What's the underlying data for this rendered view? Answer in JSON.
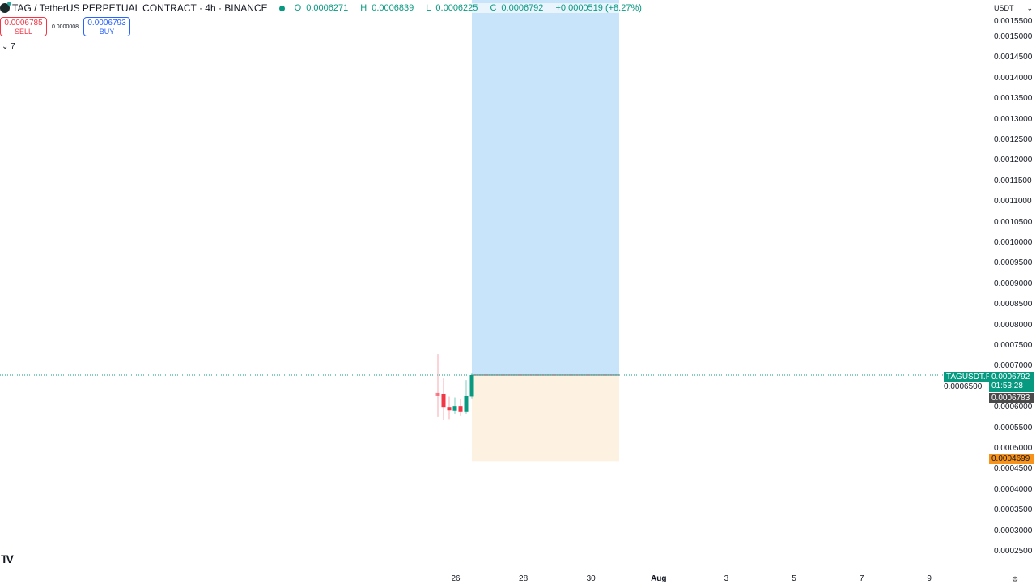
{
  "header": {
    "symbol": "TAG",
    "pair": "TAG / TetherUS PERPETUAL CONTRACT · 4h · BINANCE",
    "ohlc": {
      "o_label": "O",
      "o": "0.0006271",
      "h_label": "H",
      "h": "0.0006839",
      "l_label": "L",
      "l": "0.0006225",
      "c_label": "C",
      "c": "0.0006792",
      "change": "+0.0000519 (+8.27%)"
    }
  },
  "trade": {
    "sell_price": "0.0006785",
    "sell_label": "SELL",
    "spread": "0.0000008",
    "buy_price": "0.0006793",
    "buy_label": "BUY"
  },
  "indicators_toggle": "7",
  "currency": "USDT",
  "price_axis": [
    "0.0015500",
    "0.0015000",
    "0.0014500",
    "0.0014000",
    "0.0013500",
    "0.0013000",
    "0.0012500",
    "0.0012000",
    "0.0011500",
    "0.0011000",
    "0.0010500",
    "0.0010000",
    "0.0009500",
    "0.0009000",
    "0.0008500",
    "0.0008000",
    "0.0007500",
    "0.0007000",
    "0.0006500",
    "0.0006000",
    "0.0005500",
    "0.0005000",
    "0.0004500",
    "0.0004000",
    "0.0003500",
    "0.0003000",
    "0.0002500"
  ],
  "time_axis": [
    "26",
    "28",
    "30",
    "Aug",
    "3",
    "5",
    "7",
    "9"
  ],
  "tags": {
    "symbol": "TAGUSDT.P",
    "last_price": "0.0006792",
    "countdown": "01:53:28",
    "bid": "0.0006783",
    "stop": "0.0004699"
  },
  "colors": {
    "up": "#089981",
    "down": "#f23645",
    "target_zone": "#c8e4fb",
    "stop_zone": "#fdf1e1",
    "stop_tag": "#f7931a"
  },
  "position": {
    "entry": 0.0006792,
    "stop": 0.0004699
  },
  "candles": [
    {
      "o": 0.000636,
      "h": 0.00073,
      "l": 0.000577,
      "c": 0.000628,
      "faded": true
    },
    {
      "o": 0.000632,
      "h": 0.000671,
      "l": 0.000569,
      "c": 0.0006
    },
    {
      "o": 0.0006,
      "h": 0.000627,
      "l": 0.000572,
      "c": 0.000594
    },
    {
      "o": 0.000593,
      "h": 0.000625,
      "l": 0.000585,
      "c": 0.000604
    },
    {
      "o": 0.000604,
      "h": 0.000621,
      "l": 0.000581,
      "c": 0.000589
    },
    {
      "o": 0.000589,
      "h": 0.000667,
      "l": 0.000585,
      "c": 0.000628
    },
    {
      "o": 0.0006271,
      "h": 0.0006839,
      "l": 0.0006225,
      "c": 0.0006792
    }
  ]
}
